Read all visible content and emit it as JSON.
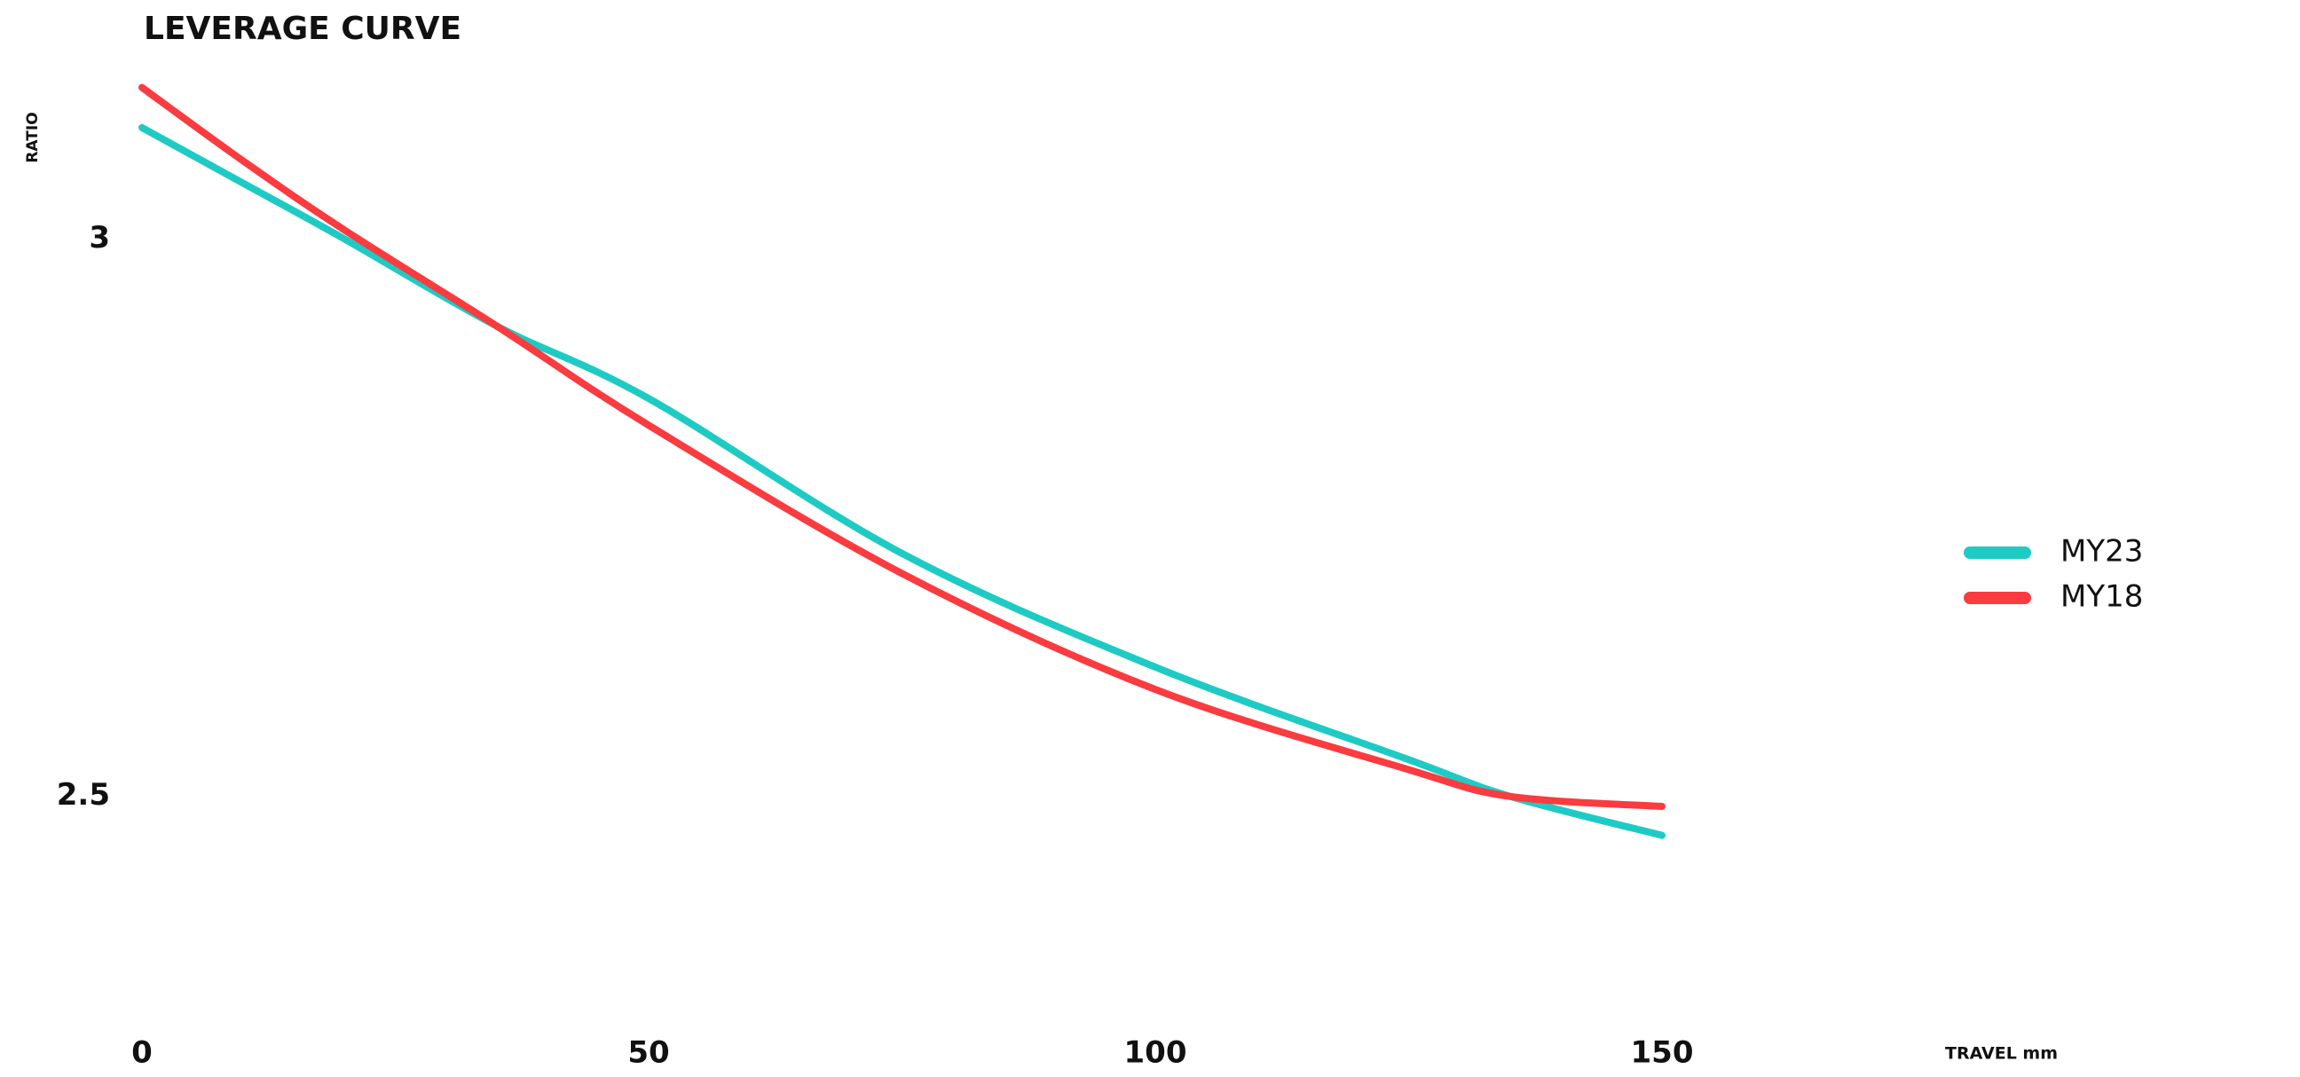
{
  "chart_data": {
    "type": "line",
    "title": "LEVERAGE CURVE",
    "y_label": "RATIO",
    "x_label": "TRAVEL mm",
    "x": [
      0,
      10,
      20,
      35,
      50,
      75,
      100,
      125,
      135,
      150
    ],
    "series": [
      {
        "name": "MY23",
        "color": "#1ecbc4",
        "values": [
          3.1,
          3.05,
          3.0,
          2.922,
          2.857,
          2.718,
          2.616,
          2.533,
          2.5,
          2.465
        ]
      },
      {
        "name": "MY18",
        "color": "#fa3b3f",
        "values": [
          3.136,
          3.07,
          3.008,
          2.922,
          2.833,
          2.7,
          2.596,
          2.524,
          2.5,
          2.491
        ]
      }
    ],
    "xlim": [
      0,
      150
    ],
    "xticks": [
      0,
      50,
      100,
      150
    ],
    "ylim": [
      2.3,
      3.15
    ],
    "yticks": [
      2.5,
      3
    ],
    "ygrid": [
      2.3,
      2.4,
      2.5,
      2.6,
      2.7,
      2.8,
      2.9,
      3.0,
      3.1
    ],
    "grid": true,
    "legend": "right"
  }
}
